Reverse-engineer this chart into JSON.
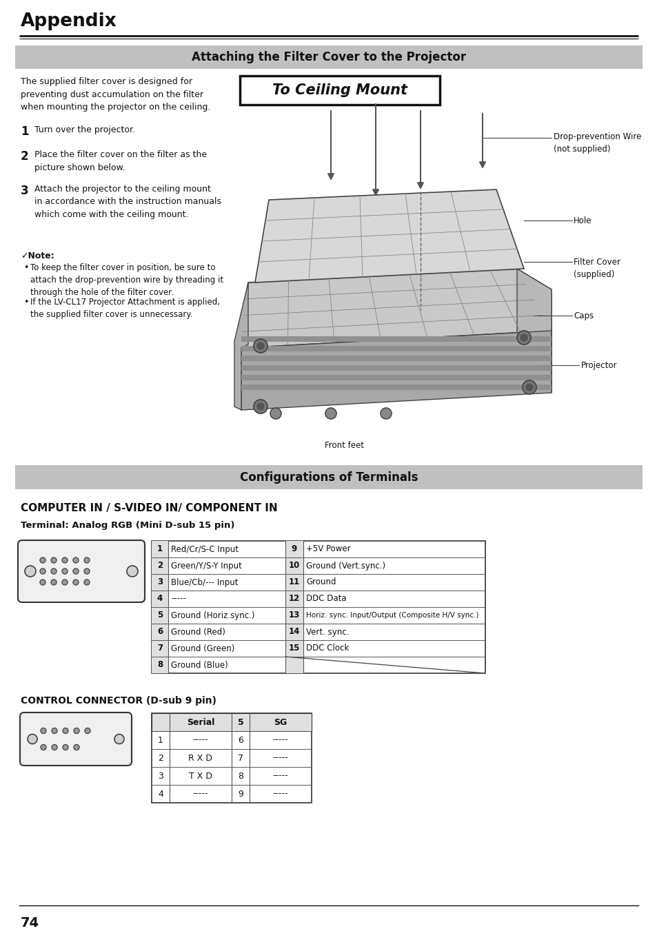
{
  "page_bg": "#ffffff",
  "title_appendix": "Appendix",
  "section1_title": "Attaching the Filter Cover to the Projector",
  "section2_title": "Configurations of Terminals",
  "ceiling_mount_label": "To Ceiling Mount",
  "intro_text": "The supplied filter cover is designed for\npreventing dust accumulation on the filter\nwhen mounting the projector on the ceiling.",
  "step1": "Turn over the projector.",
  "step2": "Place the filter cover on the filter as the\npicture shown below.",
  "step3": "Attach the projector to the ceiling mount\nin accordance with the instruction manuals\nwhich come with the ceiling mount.",
  "note_header": "✓Note:",
  "note1": "To keep the filter cover in position, be sure to\nattach the drop-prevention wire by threading it\nthrough the hole of the filter cover.",
  "note2": "If the LV-CL17 Projector Attachment is applied,\nthe supplied filter cover is unnecessary.",
  "label_wire": "Drop-prevention Wire\n(not supplied)",
  "label_hole": "Hole",
  "label_filter": "Filter Cover\n(supplied)",
  "label_caps": "Caps",
  "label_projector": "Projector",
  "label_frontfeet": "Front feet",
  "computer_in_title": "COMPUTER IN / S-VIDEO IN/ COMPONENT IN",
  "terminal_subtitle": "Terminal: Analog RGB (Mini D-sub 15 pin)",
  "table1_rows": [
    [
      "1",
      "Red/Cr/S-C Input",
      "9",
      "+5V Power"
    ],
    [
      "2",
      "Green/Y/S-Y Input",
      "10",
      "Ground (Vert.sync.)"
    ],
    [
      "3",
      "Blue/Cb/--- Input",
      "11",
      "Ground"
    ],
    [
      "4",
      "-----",
      "12",
      "DDC Data"
    ],
    [
      "5",
      "Ground (Horiz.sync.)",
      "13",
      "Horiz. sync. Input/Output (Composite H/V sync.)"
    ],
    [
      "6",
      "Ground (Red)",
      "14",
      "Vert. sync."
    ],
    [
      "7",
      "Ground (Green)",
      "15",
      "DDC Clock"
    ],
    [
      "8",
      "Ground (Blue)",
      "",
      ""
    ]
  ],
  "control_title": "CONTROL CONNECTOR (D-sub 9 pin)",
  "table2_header": [
    "",
    "Serial",
    "5",
    "SG"
  ],
  "table2_rows": [
    [
      "1",
      "-----",
      "6",
      "-----"
    ],
    [
      "2",
      "R X D",
      "7",
      "-----"
    ],
    [
      "3",
      "T X D",
      "8",
      "-----"
    ],
    [
      "4",
      "-----",
      "9",
      "-----"
    ]
  ],
  "page_number": "74",
  "section_bg": "#c0c0c0",
  "row_alt_bg": "#f0f0f0",
  "row_plain_bg": "#ffffff",
  "header_row_bg": "#e0e0e0"
}
